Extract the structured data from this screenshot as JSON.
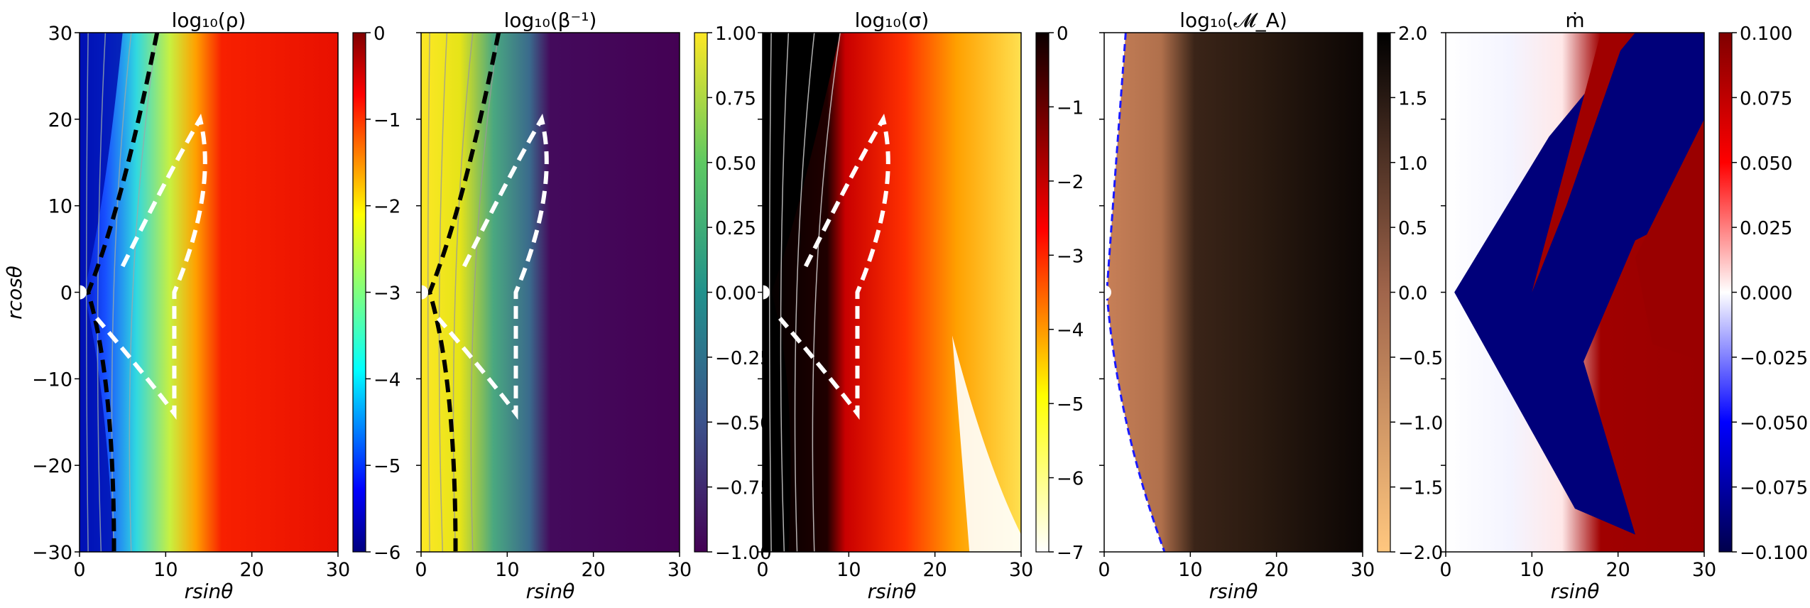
{
  "chart_data": [
    {
      "type": "heatmap",
      "title": "log₁₀(ρ)",
      "ylabel": "rcosθ",
      "xlabel": "rsinθ",
      "xlim": [
        0,
        30
      ],
      "ylim": [
        -30,
        30
      ],
      "x_ticks": [
        "0",
        "10",
        "20",
        "30"
      ],
      "y_ticks": [
        "−30",
        "−20",
        "−10",
        "0",
        "10",
        "20",
        "30"
      ],
      "colorbar": {
        "range": [
          -6,
          0
        ],
        "cmap": "jet",
        "ticks": [
          "0",
          "−1",
          "−2",
          "−3",
          "−4",
          "−5",
          "−6"
        ]
      },
      "contours": [
        {
          "color": "black",
          "style": "dashed"
        },
        {
          "color": "white",
          "style": "dashed"
        }
      ],
      "streamlines": true
    },
    {
      "type": "heatmap",
      "title": "log₁₀(β⁻¹)",
      "xlabel": "rsinθ",
      "xlim": [
        0,
        30
      ],
      "ylim": [
        -30,
        30
      ],
      "x_ticks": [
        "0",
        "10",
        "20",
        "30"
      ],
      "colorbar": {
        "range": [
          -1,
          1
        ],
        "cmap": "viridis",
        "ticks": [
          "1.00",
          "0.75",
          "0.50",
          "0.25",
          "0.00",
          "−0.25",
          "−0.50",
          "−0.75",
          "−1.00"
        ]
      },
      "contours": [
        {
          "color": "black",
          "style": "dashed"
        },
        {
          "color": "white",
          "style": "dashed"
        }
      ],
      "streamlines": true
    },
    {
      "type": "heatmap",
      "title": "log₁₀(σ)",
      "xlabel": "rsinθ",
      "xlim": [
        0,
        30
      ],
      "ylim": [
        -30,
        30
      ],
      "x_ticks": [
        "0",
        "10",
        "20",
        "30"
      ],
      "colorbar": {
        "range": [
          -7,
          0
        ],
        "cmap": "hot",
        "ticks": [
          "0",
          "−1",
          "−2",
          "−3",
          "−4",
          "−5",
          "−6",
          "−7"
        ]
      },
      "contours": [
        {
          "color": "white",
          "style": "dashed"
        }
      ],
      "streamlines": true
    },
    {
      "type": "heatmap",
      "title": "log₁₀(𝓜_A)",
      "xlabel": "rsinθ",
      "xlim": [
        0,
        30
      ],
      "ylim": [
        -30,
        30
      ],
      "x_ticks": [
        "0",
        "10",
        "20",
        "30"
      ],
      "colorbar": {
        "range": [
          -2,
          2
        ],
        "cmap": "copper_r",
        "ticks": [
          "2.0",
          "1.5",
          "1.0",
          "0.5",
          "0.0",
          "−0.5",
          "−1.0",
          "−1.5",
          "−2.0"
        ]
      },
      "contours": [
        {
          "color": "blue",
          "style": "dashed"
        }
      ],
      "streamlines": false
    },
    {
      "type": "heatmap",
      "title": "ṁ",
      "xlabel": "rsinθ",
      "xlim": [
        0,
        30
      ],
      "ylim": [
        -30,
        30
      ],
      "x_ticks": [
        "0",
        "10",
        "20",
        "30"
      ],
      "colorbar": {
        "range": [
          -0.1,
          0.1
        ],
        "cmap": "seismic",
        "ticks": [
          "0.100",
          "0.075",
          "0.050",
          "0.025",
          "0.000",
          "−0.025",
          "−0.050",
          "−0.075",
          "−0.100"
        ]
      },
      "contours": [],
      "streamlines": false
    }
  ]
}
